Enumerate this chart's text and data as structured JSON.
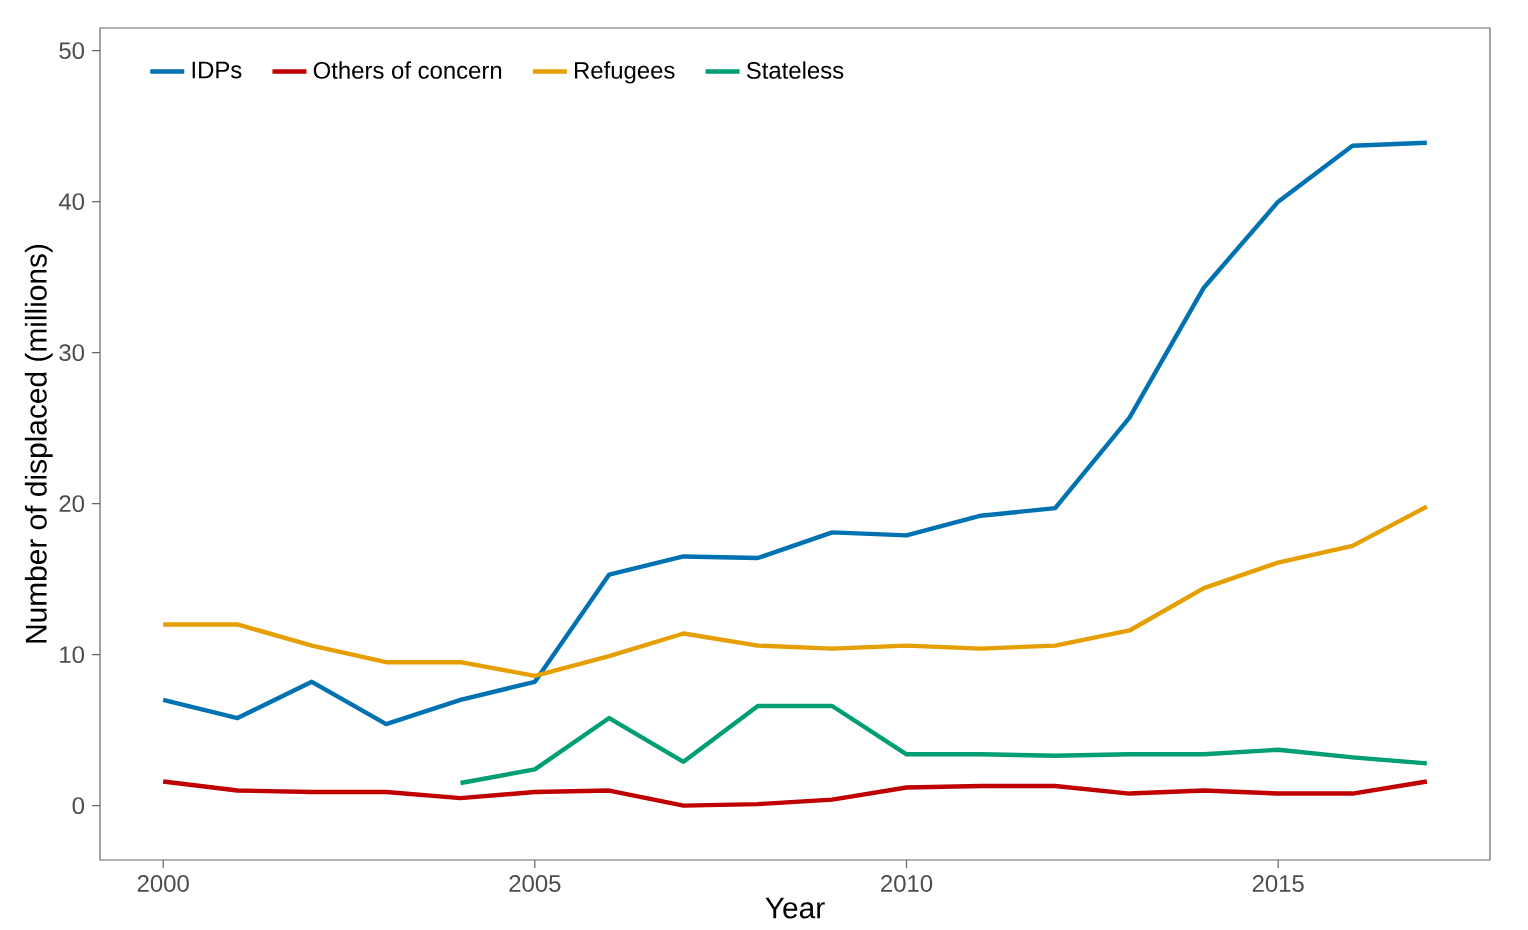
{
  "chart_data": {
    "type": "line",
    "xlabel": "Year",
    "ylabel": "Number of displaced (millions)",
    "xlim": [
      1999.15,
      2017.85
    ],
    "ylim": [
      -3.6,
      51.5
    ],
    "xticks": [
      2000,
      2005,
      2010,
      2015
    ],
    "yticks": [
      0,
      10,
      20,
      30,
      40,
      50
    ],
    "grid": false,
    "legend": "top left",
    "marker": "none",
    "line_style": "solid",
    "x": [
      2000,
      2001,
      2002,
      2003,
      2004,
      2005,
      2006,
      2007,
      2008,
      2009,
      2010,
      2011,
      2012,
      2013,
      2014,
      2015,
      2016,
      2017
    ],
    "series": [
      {
        "name": "IDPs",
        "color": "#0072b2",
        "values": [
          7.0,
          5.8,
          8.2,
          5.4,
          7.0,
          8.2,
          15.3,
          16.5,
          16.4,
          18.1,
          17.9,
          19.2,
          19.7,
          25.7,
          34.3,
          40.0,
          43.7,
          43.9
        ]
      },
      {
        "name": "Others of concern",
        "color": "#c00000",
        "values": [
          1.6,
          1.0,
          0.9,
          0.9,
          0.5,
          0.9,
          1.0,
          0.0,
          0.1,
          0.4,
          1.2,
          1.3,
          1.3,
          0.8,
          1.0,
          0.8,
          0.8,
          1.6
        ]
      },
      {
        "name": "Refugees",
        "color": "#e69f00",
        "values": [
          12.0,
          12.0,
          10.6,
          9.5,
          9.5,
          8.6,
          9.9,
          11.4,
          10.6,
          10.4,
          10.6,
          10.4,
          10.6,
          11.6,
          14.4,
          16.1,
          17.2,
          19.8
        ]
      },
      {
        "name": "Stateless",
        "color": "#009e73",
        "x": [
          2004,
          2005,
          2006,
          2007,
          2008,
          2009,
          2010,
          2011,
          2012,
          2013,
          2014,
          2015,
          2016,
          2017
        ],
        "values": [
          1.5,
          2.4,
          5.8,
          2.9,
          6.6,
          6.6,
          3.4,
          3.4,
          3.3,
          3.4,
          3.4,
          3.7,
          3.2,
          2.8
        ]
      }
    ]
  }
}
